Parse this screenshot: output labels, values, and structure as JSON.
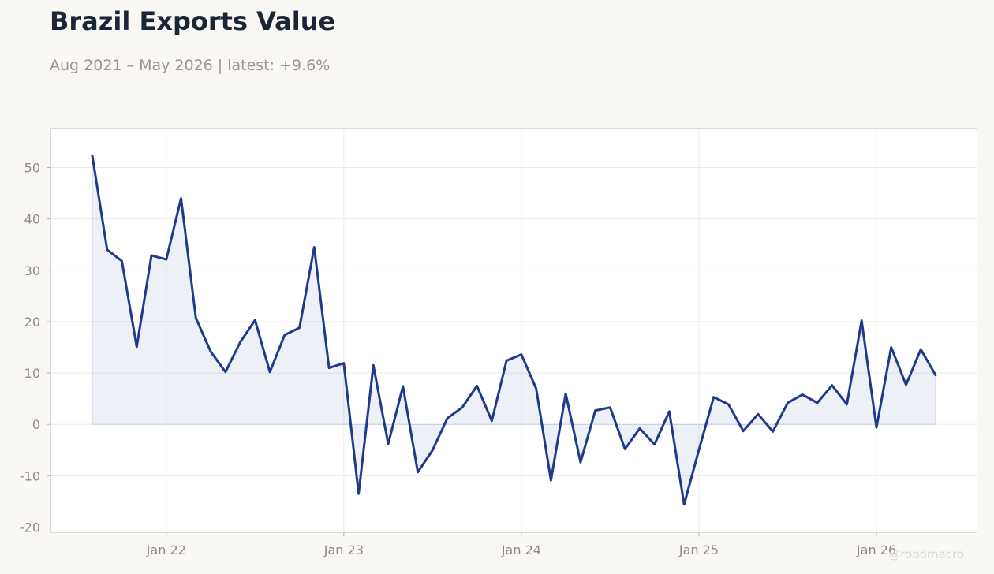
{
  "header": {
    "title": "Brazil Exports Value",
    "subtitle": "Aug 2021 – May 2026 | latest: +9.6%"
  },
  "watermark": "@robomacro",
  "colors": {
    "line": "#1f3a8a",
    "area": "rgba(31,58,138,0.08)",
    "title": "#1a2535",
    "muted": "#9a958f",
    "plot_bg": "#ffffff",
    "page_bg": "#f9f8f5"
  },
  "chart_data": {
    "type": "area",
    "title": "Brazil Exports Value",
    "xlabel": "",
    "ylabel": "",
    "ylim": [
      -21,
      57
    ],
    "yticks": [
      -20,
      -10,
      0,
      10,
      20,
      30,
      40,
      50
    ],
    "xticks": [
      {
        "label": "Jan 22",
        "date": "2022-01"
      },
      {
        "label": "Jan 23",
        "date": "2023-01"
      },
      {
        "label": "Jan 24",
        "date": "2024-01"
      },
      {
        "label": "Jan 25",
        "date": "2025-01"
      },
      {
        "label": "Jan 26",
        "date": "2026-01"
      }
    ],
    "grid": true,
    "x": [
      "2021-08",
      "2021-09",
      "2021-10",
      "2021-11",
      "2021-12",
      "2022-01",
      "2022-02",
      "2022-03",
      "2022-04",
      "2022-05",
      "2022-06",
      "2022-07",
      "2022-08",
      "2022-09",
      "2022-10",
      "2022-11",
      "2022-12",
      "2023-01",
      "2023-02",
      "2023-03",
      "2023-04",
      "2023-05",
      "2023-06",
      "2023-07",
      "2023-08",
      "2023-09",
      "2023-10",
      "2023-11",
      "2023-12",
      "2024-01",
      "2024-02",
      "2024-03",
      "2024-04",
      "2024-05",
      "2024-06",
      "2024-07",
      "2024-08",
      "2024-09",
      "2024-10",
      "2024-11",
      "2024-12",
      "2025-01",
      "2025-02",
      "2025-03",
      "2025-04",
      "2025-05",
      "2025-06",
      "2025-07",
      "2025-08",
      "2025-09",
      "2025-10",
      "2025-11",
      "2025-12",
      "2026-01",
      "2026-02",
      "2026-03",
      "2026-04",
      "2026-05"
    ],
    "series": [
      {
        "values": [
          52.3,
          34.0,
          31.8,
          15.1,
          32.9,
          32.1,
          44.0,
          20.7,
          14.2,
          10.2,
          16.0,
          20.3,
          10.2,
          17.4,
          18.8,
          34.5,
          11.0,
          11.9,
          -13.5,
          11.5,
          -3.8,
          7.4,
          -9.3,
          -5.0,
          1.2,
          3.3,
          7.5,
          0.7,
          12.4,
          13.6,
          7.0,
          -10.9,
          6.0,
          -7.4,
          2.7,
          3.3,
          -4.8,
          -0.8,
          -3.9,
          2.5,
          -15.6,
          -5.0,
          5.3,
          3.9,
          -1.3,
          2.0,
          -1.4,
          4.2,
          5.8,
          4.2,
          7.6,
          3.9,
          20.2,
          -0.6,
          15.0,
          7.7,
          14.6,
          9.6
        ]
      }
    ]
  }
}
